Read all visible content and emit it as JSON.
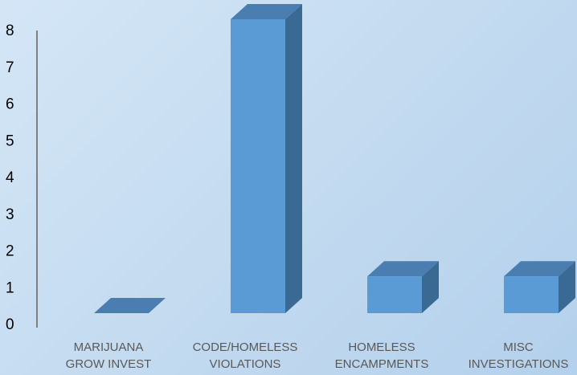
{
  "chart_data": {
    "type": "bar",
    "style": "3d-column",
    "categories": [
      [
        "MARIJUANA",
        "GROW INVEST"
      ],
      [
        "CODE/HOMELESS",
        "VIOLATIONS"
      ],
      [
        "HOMELESS",
        "ENCAMPMENTS"
      ],
      [
        "MISC",
        "INVESTIGATIONS"
      ]
    ],
    "values": [
      0,
      8,
      1,
      1
    ],
    "ylim": [
      0,
      8
    ],
    "yticks": [
      0,
      1,
      2,
      3,
      4,
      5,
      6,
      7,
      8
    ],
    "grid": false,
    "legend": "none",
    "colors": {
      "front": "#5b9bd5",
      "side": "#3a6a94",
      "top": "#4a7db0",
      "axis": "#7f7f7f"
    }
  }
}
